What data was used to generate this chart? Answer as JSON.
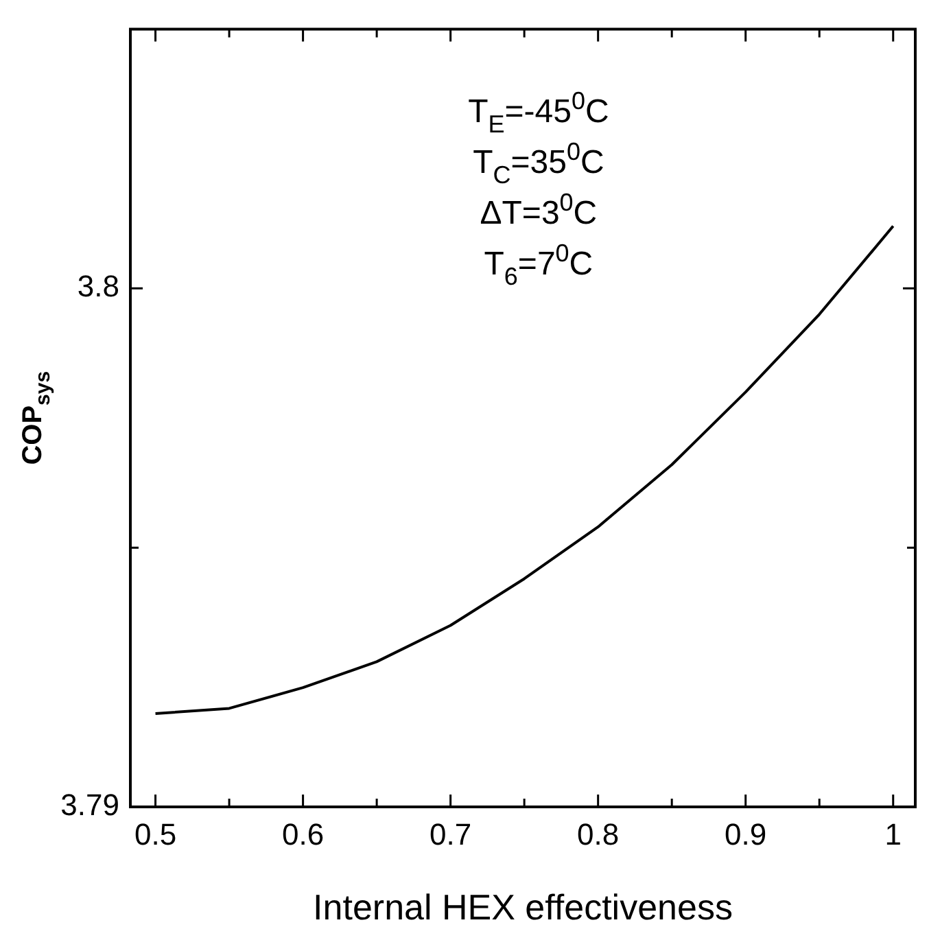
{
  "chart_data": {
    "type": "line",
    "xlabel": "Internal HEX effectiveness",
    "ylabel": "COP$_{sys}$",
    "x": [
      0.5,
      0.55,
      0.6,
      0.65,
      0.7,
      0.75,
      0.8,
      0.85,
      0.9,
      0.95,
      1.0
    ],
    "series": [
      {
        "color": "#000000",
        "values": [
          3.7918,
          3.7919,
          3.7923,
          3.7928,
          3.7935,
          3.7944,
          3.7954,
          3.7966,
          3.798,
          3.7995,
          3.8012
        ]
      }
    ],
    "xlim": [
      0.483,
      1.015
    ],
    "xticks": [
      0.5,
      {
        "value": 0.55,
        "label": null
      },
      0.6,
      {
        "value": 0.65,
        "label": null
      },
      0.7,
      {
        "value": 0.75,
        "label": null
      },
      0.8,
      {
        "value": 0.85,
        "label": null
      },
      0.9,
      {
        "value": 0.95,
        "label": null
      },
      {
        "value": 1.0,
        "label": "1"
      }
    ],
    "ylim": [
      3.79,
      3.805
    ],
    "yticks": [
      3.79,
      {
        "value": 3.795,
        "label": null
      },
      3.8
    ],
    "annotations": [
      "T$_{E}$=-45$^{0}$C",
      "T$_{C}$=35$^{0}$C",
      "ΔT=3$^{0}$C",
      "T$_{6}$=7$^{0}$C"
    ],
    "legend": false,
    "grid": false,
    "marker": "none",
    "line_style": "solid"
  }
}
